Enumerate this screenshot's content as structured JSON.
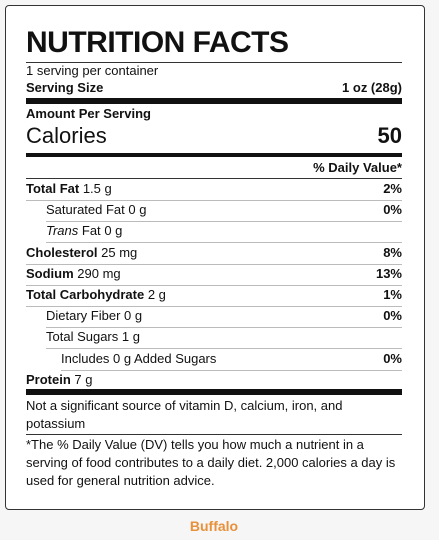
{
  "label": {
    "title": "NUTRITION FACTS",
    "servings": "1 serving per container",
    "serving_size_label": "Serving Size",
    "serving_size": "1 oz (28g)",
    "amount_per_serving": "Amount Per Serving",
    "calories_label": "Calories",
    "calories": "50",
    "daily_value_header": "% Daily Value*",
    "rows": [
      {
        "name": "Total Fat",
        "amount": "1.5 g",
        "dv": "2%"
      },
      {
        "name": "Saturated Fat",
        "amount": "0 g",
        "dv": "0%"
      },
      {
        "italic": "Trans",
        "name": "Fat",
        "amount": "0 g"
      },
      {
        "name": "Cholesterol",
        "amount": "25 mg",
        "dv": "8%"
      },
      {
        "name": "Sodium",
        "amount": "290 mg",
        "dv": "13%"
      },
      {
        "name": "Total Carbohydrate",
        "amount": "2 g",
        "dv": "1%"
      },
      {
        "name": "Dietary Fiber",
        "amount": "0 g",
        "dv": "0%"
      },
      {
        "name": "Total Sugars",
        "amount": "1 g"
      },
      {
        "name": "Includes 0 g Added Sugars",
        "dv": "0%"
      },
      {
        "name": "Protein",
        "amount": "7 g"
      }
    ],
    "vitamins_note": "Not a significant source of vitamin D, calcium, iron, and potassium",
    "footnote": "*The % Daily Value (DV) tells you how much a nutrient in a serving of food contributes to a daily diet. 2,000 calories a day is used for general nutrition advice."
  },
  "caption": "Buffalo"
}
